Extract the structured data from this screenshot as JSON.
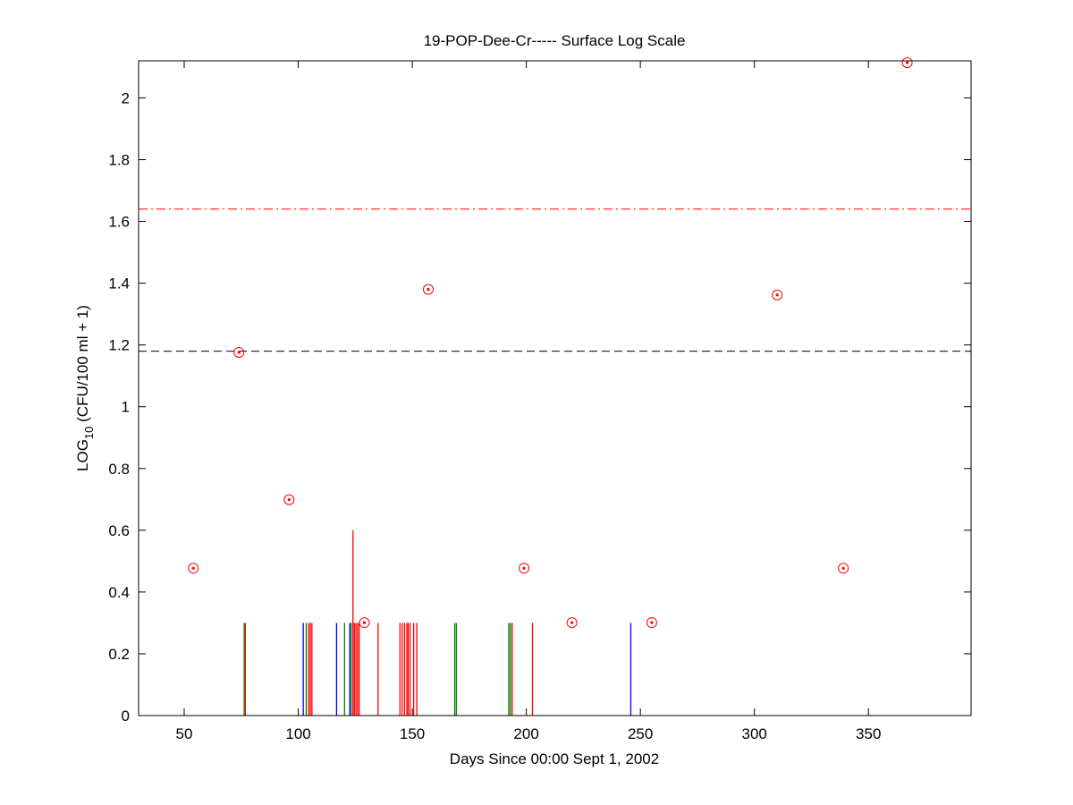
{
  "chart_data": {
    "type": "scatter",
    "title": "19-POP-Dee-Cr----- Surface Log Scale",
    "xlabel": "Days Since 00:00 Sept 1, 2002",
    "ylabel_main": "LOG",
    "ylabel_sub": "10",
    "ylabel_rest": " (CFU/100 ml + 1)",
    "xlim": [
      30,
      395
    ],
    "ylim": [
      0,
      2.12
    ],
    "xticks": [
      50,
      100,
      150,
      200,
      250,
      300,
      350
    ],
    "yticks": [
      0,
      0.2,
      0.4,
      0.6,
      0.8,
      1,
      1.2,
      1.4,
      1.6,
      1.8,
      2
    ],
    "ytick_labels": [
      "0",
      "0.2",
      "0.4",
      "0.6",
      "0.8",
      "1",
      "1.2",
      "1.4",
      "1.6",
      "1.8",
      "2"
    ],
    "grid": false,
    "reference_lines": [
      {
        "y": 1.64,
        "style": "dash-dot",
        "color": "#ff0000"
      },
      {
        "y": 1.18,
        "style": "dashed",
        "color": "#000000"
      }
    ],
    "points": {
      "color": "#ff0000",
      "x": [
        54,
        74,
        96,
        129,
        157,
        199,
        220,
        255,
        310,
        339,
        367
      ],
      "y": [
        0.477,
        1.176,
        0.699,
        0.301,
        1.38,
        0.477,
        0.301,
        0.301,
        1.362,
        0.477,
        2.114
      ]
    },
    "stems": [
      {
        "x": 76.3,
        "y": 0.3,
        "color": "#008000"
      },
      {
        "x": 76.8,
        "y": 0.3,
        "color": "#ff0000"
      },
      {
        "x": 102.2,
        "y": 0.3,
        "color": "#0000ff"
      },
      {
        "x": 103.5,
        "y": 0.3,
        "color": "#008000"
      },
      {
        "x": 104.6,
        "y": 0.3,
        "color": "#ff0000"
      },
      {
        "x": 105.3,
        "y": 0.3,
        "color": "#ff0000"
      },
      {
        "x": 106.0,
        "y": 0.3,
        "color": "#ff0000"
      },
      {
        "x": 116.8,
        "y": 0.3,
        "color": "#0000ff"
      },
      {
        "x": 120.3,
        "y": 0.3,
        "color": "#008000"
      },
      {
        "x": 122.6,
        "y": 0.3,
        "color": "#0000ff"
      },
      {
        "x": 123.2,
        "y": 0.3,
        "color": "#008000"
      },
      {
        "x": 124.0,
        "y": 0.6,
        "color": "#ff0000"
      },
      {
        "x": 124.6,
        "y": 0.3,
        "color": "#ff0000"
      },
      {
        "x": 125.3,
        "y": 0.3,
        "color": "#ff0000"
      },
      {
        "x": 126.0,
        "y": 0.3,
        "color": "#ff0000"
      },
      {
        "x": 126.7,
        "y": 0.3,
        "color": "#ff0000"
      },
      {
        "x": 135.0,
        "y": 0.3,
        "color": "#ff0000"
      },
      {
        "x": 144.6,
        "y": 0.3,
        "color": "#ff0000"
      },
      {
        "x": 145.6,
        "y": 0.3,
        "color": "#ff0000"
      },
      {
        "x": 146.6,
        "y": 0.3,
        "color": "#ff0000"
      },
      {
        "x": 147.6,
        "y": 0.3,
        "color": "#ff0000"
      },
      {
        "x": 148.2,
        "y": 0.3,
        "color": "#ff0000"
      },
      {
        "x": 149.0,
        "y": 0.3,
        "color": "#ff0000"
      },
      {
        "x": 150.6,
        "y": 0.3,
        "color": "#ff0000"
      },
      {
        "x": 152.0,
        "y": 0.3,
        "color": "#ff0000"
      },
      {
        "x": 168.6,
        "y": 0.3,
        "color": "#008000"
      },
      {
        "x": 169.3,
        "y": 0.3,
        "color": "#008000"
      },
      {
        "x": 192.3,
        "y": 0.3,
        "color": "#008000"
      },
      {
        "x": 193.0,
        "y": 0.3,
        "color": "#008000"
      },
      {
        "x": 193.8,
        "y": 0.3,
        "color": "#ff0000"
      },
      {
        "x": 202.7,
        "y": 0.3,
        "color": "#ff0000"
      },
      {
        "x": 245.8,
        "y": 0.3,
        "color": "#0000ff"
      }
    ]
  }
}
